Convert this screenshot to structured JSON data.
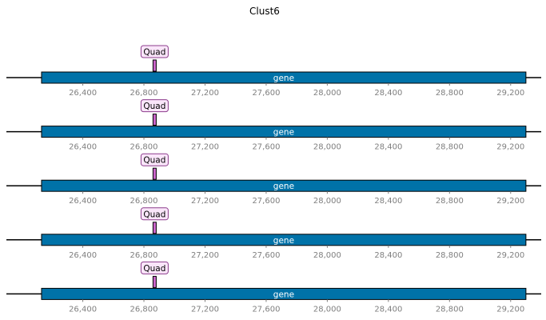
{
  "chart_data": {
    "type": "gene-track",
    "title": "Clust6",
    "xlim": [
      25900,
      29400
    ],
    "ticks": [
      26400,
      26800,
      27200,
      27600,
      28000,
      28400,
      28800,
      29200
    ],
    "tick_labels": [
      "26,400",
      "26,800",
      "27,200",
      "27,600",
      "28,000",
      "28,400",
      "28,800",
      "29,200"
    ],
    "colors": {
      "gene_fill": "#0072a8",
      "feature_fill": "#cc66cc",
      "label_box_fill": "#fae6fa",
      "label_box_edge": "#8c3c8c",
      "tick_text": "#7f7f7f"
    },
    "tracks": [
      {
        "gene": {
          "label": "gene",
          "start": 26130,
          "end": 29300
        },
        "feature": {
          "label": "Quad",
          "start": 26862,
          "end": 26878
        }
      },
      {
        "gene": {
          "label": "gene",
          "start": 26130,
          "end": 29300
        },
        "feature": {
          "label": "Quad",
          "start": 26862,
          "end": 26878
        }
      },
      {
        "gene": {
          "label": "gene",
          "start": 26130,
          "end": 29300
        },
        "feature": {
          "label": "Quad",
          "start": 26862,
          "end": 26878
        }
      },
      {
        "gene": {
          "label": "gene",
          "start": 26130,
          "end": 29300
        },
        "feature": {
          "label": "Quad",
          "start": 26862,
          "end": 26878
        }
      },
      {
        "gene": {
          "label": "gene",
          "start": 26130,
          "end": 29300
        },
        "feature": {
          "label": "Quad",
          "start": 26862,
          "end": 26878
        }
      }
    ]
  }
}
